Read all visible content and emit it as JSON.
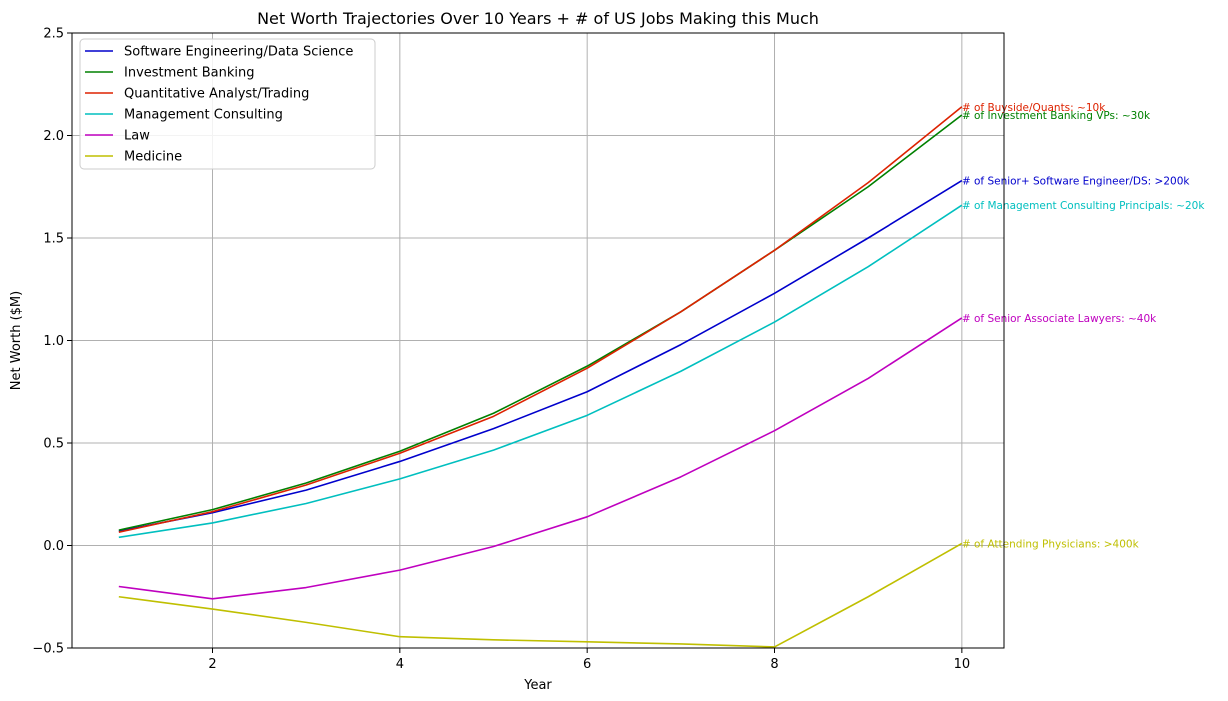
{
  "chart_data": {
    "type": "line",
    "title": "Net Worth Trajectories Over 10 Years + # of US Jobs Making this Much",
    "xlabel": "Year",
    "ylabel": "Net Worth ($M)",
    "xlim": [
      0.5,
      10.45
    ],
    "ylim": [
      -0.5,
      2.5
    ],
    "xticks": [
      2,
      4,
      6,
      8,
      10
    ],
    "yticks": [
      -0.5,
      0.0,
      0.5,
      1.0,
      1.5,
      2.0,
      2.5
    ],
    "ytick_labels": [
      "−0.5",
      "0.0",
      "0.5",
      "1.0",
      "1.5",
      "2.0",
      "2.5"
    ],
    "grid": true,
    "legend_position": "top-left",
    "x": [
      1,
      2,
      3,
      4,
      5,
      6,
      7,
      8,
      9,
      10
    ],
    "series": [
      {
        "name": "Software Engineering/Data Science",
        "color": "#0000cc",
        "values": [
          0.07,
          0.16,
          0.27,
          0.41,
          0.57,
          0.75,
          0.98,
          1.23,
          1.5,
          1.78
        ]
      },
      {
        "name": "Investment Banking",
        "color": "#008000",
        "values": [
          0.075,
          0.175,
          0.305,
          0.46,
          0.645,
          0.875,
          1.14,
          1.44,
          1.75,
          2.1
        ]
      },
      {
        "name": "Quantitative Analyst/Trading",
        "color": "#dd2200",
        "values": [
          0.065,
          0.165,
          0.295,
          0.45,
          0.63,
          0.865,
          1.14,
          1.44,
          1.77,
          2.14
        ]
      },
      {
        "name": "Management Consulting",
        "color": "#00bfbf",
        "values": [
          0.04,
          0.11,
          0.205,
          0.325,
          0.465,
          0.635,
          0.85,
          1.09,
          1.36,
          1.66
        ]
      },
      {
        "name": "Law",
        "color": "#bf00bf",
        "values": [
          -0.2,
          -0.26,
          -0.205,
          -0.12,
          -0.005,
          0.14,
          0.335,
          0.56,
          0.815,
          1.11
        ]
      },
      {
        "name": "Medicine",
        "color": "#bfbf00",
        "values": [
          -0.25,
          -0.31,
          -0.375,
          -0.445,
          -0.46,
          -0.47,
          -0.48,
          -0.495,
          -0.25,
          0.01
        ]
      }
    ],
    "annotations": [
      {
        "text": "# of Buyside/Quants: ~10k",
        "x": 10,
        "y": 2.14,
        "color": "#dd2200"
      },
      {
        "text": "# of Investment Banking VPs: ~30k",
        "x": 10,
        "y": 2.1,
        "color": "#008000"
      },
      {
        "text": "# of Senior+ Software Engineer/DS: >200k",
        "x": 10,
        "y": 1.78,
        "color": "#0000cc"
      },
      {
        "text": "# of Management Consulting Principals: ~20k",
        "x": 10,
        "y": 1.66,
        "color": "#00bfbf"
      },
      {
        "text": "# of Senior Associate Lawyers: ~40k",
        "x": 10,
        "y": 1.11,
        "color": "#bf00bf"
      },
      {
        "text": "# of Attending Physicians: >400k",
        "x": 10,
        "y": 0.01,
        "color": "#bfbf00"
      }
    ]
  }
}
